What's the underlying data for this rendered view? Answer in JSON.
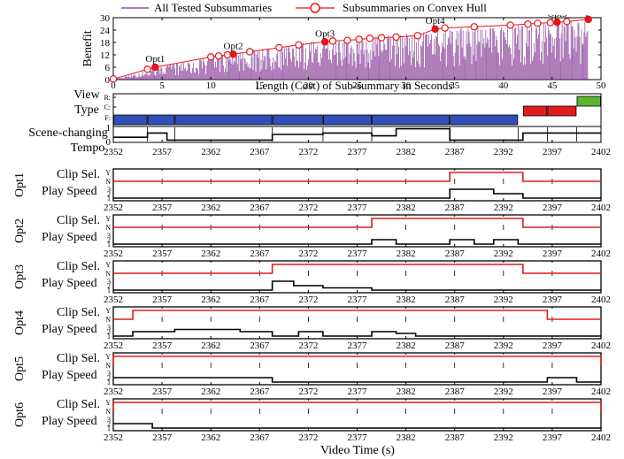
{
  "chart_data": [
    {
      "type": "bar",
      "ylabel": "Benefit",
      "xlabel": "Length (Cost) of Sub-summary in Seconds",
      "xlim": [
        0,
        50
      ],
      "ylim": [
        0,
        30
      ],
      "x_ticks": [
        "0",
        "5",
        "10",
        "15",
        "20",
        "25",
        "30",
        "35",
        "40",
        "45",
        "50"
      ],
      "y_ticks": [
        "0",
        "6",
        "12",
        "18",
        "24",
        "30"
      ],
      "legend": {
        "placement": "top",
        "entries": [
          "All Tested Subsummaries",
          "Subsummaries on Convex Hull"
        ]
      },
      "colors": {
        "all_tested": "#7b2a8e",
        "convex_hull": "#e8141b"
      },
      "convex_hull": {
        "x": [
          0,
          3.5,
          4.3,
          10,
          10.8,
          11.7,
          12.3,
          14,
          17,
          19,
          21.7,
          22.5,
          24,
          25.2,
          26.3,
          27.5,
          29,
          31.2,
          33,
          34,
          37,
          40.7,
          42.5,
          43.5,
          44.8,
          45.5,
          46.5,
          48.7
        ],
        "y": [
          0.3,
          5,
          6,
          11,
          11.5,
          12,
          12.3,
          13.5,
          15.5,
          16.8,
          18.3,
          18.7,
          19,
          19.5,
          20,
          20.3,
          20.6,
          21.3,
          24.5,
          25,
          25.6,
          26.4,
          26.9,
          27.3,
          27.6,
          27.8,
          28.1,
          29.2
        ]
      },
      "labelled_points": [
        {
          "label": "Opt1",
          "x": 4.3,
          "y": 6
        },
        {
          "label": "Opt2",
          "x": 12.3,
          "y": 12.3
        },
        {
          "label": "Opt3",
          "x": 21.7,
          "y": 18.3
        },
        {
          "label": "Opt4",
          "x": 33,
          "y": 24.5
        },
        {
          "label": "Opt5",
          "x": 45.5,
          "y": 27.8
        },
        {
          "label": "Opt6",
          "x": 48.7,
          "y": 29.2
        }
      ],
      "all_tested_envelope": {
        "x": [
          0,
          5,
          10,
          15,
          20,
          25,
          30,
          35,
          40,
          45,
          48.7
        ],
        "y": [
          0.3,
          6.5,
          11,
          15,
          18.4,
          20.6,
          22.5,
          25,
          26.4,
          28,
          29.2
        ]
      }
    },
    {
      "type": "table",
      "rows": [
        "View",
        "Type",
        "Scene-changing",
        "Tempo"
      ],
      "view_levels": [
        "R:",
        "C:",
        "F:"
      ],
      "x_range": [
        2352,
        2402
      ],
      "x_ticks": [
        "2352",
        "2357",
        "2362",
        "2367",
        "2372",
        "2377",
        "2382",
        "2387",
        "2392",
        "2397",
        "2402"
      ],
      "colors": {
        "F": "#3050b8",
        "C": "#e01b1b",
        "R": "#5ab52e"
      },
      "view_segments": [
        {
          "level": "F",
          "start": 2352,
          "end": 2355.5
        },
        {
          "level": "F",
          "start": 2355.5,
          "end": 2358.3
        },
        {
          "level": "F",
          "start": 2358.3,
          "end": 2368.3
        },
        {
          "level": "F",
          "start": 2368.3,
          "end": 2373.5
        },
        {
          "level": "F",
          "start": 2373.5,
          "end": 2378.5
        },
        {
          "level": "F",
          "start": 2378.5,
          "end": 2386.5
        },
        {
          "level": "F",
          "start": 2386.5,
          "end": 2393.5
        },
        {
          "level": "C",
          "start": 2394,
          "end": 2396.5
        },
        {
          "level": "C",
          "start": 2396.5,
          "end": 2399.5
        },
        {
          "level": "R",
          "start": 2399.5,
          "end": 2402
        }
      ],
      "scene_change_times": [
        2355.5,
        2358.3,
        2368.3,
        2373.5,
        2378.5,
        2386.5,
        2393.5,
        2396.5,
        2399.5
      ],
      "tempo": [
        {
          "x": 2352,
          "y": 0.3
        },
        {
          "x": 2355.5,
          "y": 0.6
        },
        {
          "x": 2357.5,
          "y": 0.1
        },
        {
          "x": 2368.3,
          "y": 0.5
        },
        {
          "x": 2373.5,
          "y": 0.6
        },
        {
          "x": 2378.5,
          "y": 0.4
        },
        {
          "x": 2381,
          "y": 0.9
        },
        {
          "x": 2386.5,
          "y": 0.1
        },
        {
          "x": 2394,
          "y": 0.6
        },
        {
          "x": 2402,
          "y": 0.6
        }
      ],
      "tempo_ticks": [
        "0",
        "1"
      ]
    },
    {
      "type": "line",
      "shared_xlabel": "Video Time (s)",
      "x_range": [
        2352,
        2402
      ],
      "x_ticks": [
        "2352",
        "2357",
        "2362",
        "2367",
        "2372",
        "2377",
        "2382",
        "2387",
        "2392",
        "2397",
        "2402"
      ],
      "clip_ticks": [
        "Y",
        "N"
      ],
      "speed_ticks": [
        "3",
        "2",
        "1"
      ],
      "row_labels": [
        "Clip Sel.",
        "Play Speed"
      ],
      "colors": {
        "clip_selection": "#e01b1b",
        "play_speed": "#000000"
      },
      "options": [
        {
          "name": "Opt1",
          "clip_selected": [
            [
              2386.5,
              2394
            ]
          ],
          "play_speed": [
            [
              2352,
              1
            ],
            [
              2386.5,
              3
            ],
            [
              2391,
              2
            ],
            [
              2394,
              1
            ],
            [
              2402,
              1
            ]
          ]
        },
        {
          "name": "Opt2",
          "clip_selected": [
            [
              2378.5,
              2394
            ]
          ],
          "play_speed": [
            [
              2352,
              1
            ],
            [
              2378.5,
              2
            ],
            [
              2381,
              1
            ],
            [
              2386.5,
              2
            ],
            [
              2389,
              1
            ],
            [
              2391,
              2
            ],
            [
              2393.5,
              1
            ],
            [
              2402,
              1
            ]
          ]
        },
        {
          "name": "Opt3",
          "clip_selected": [
            [
              2368.3,
              2394
            ]
          ],
          "play_speed": [
            [
              2352,
              1
            ],
            [
              2368.3,
              3
            ],
            [
              2370.5,
              2
            ],
            [
              2373.5,
              1.5
            ],
            [
              2378.5,
              1
            ],
            [
              2402,
              1
            ]
          ]
        },
        {
          "name": "Opt4",
          "clip_selected": [
            [
              2354,
              2396.5
            ]
          ],
          "play_speed": [
            [
              2352,
              1
            ],
            [
              2354,
              2
            ],
            [
              2358.3,
              2.5
            ],
            [
              2365,
              2
            ],
            [
              2368.3,
              1
            ],
            [
              2371,
              2
            ],
            [
              2373.5,
              1
            ],
            [
              2378.5,
              2
            ],
            [
              2381,
              1.6
            ],
            [
              2383,
              1
            ],
            [
              2396.5,
              1
            ],
            [
              2402,
              1
            ]
          ]
        },
        {
          "name": "Opt5",
          "clip_selected": [
            [
              2352,
              2402
            ]
          ],
          "play_speed": [
            [
              2352,
              2
            ],
            [
              2368.3,
              1
            ],
            [
              2396.5,
              2
            ],
            [
              2399.5,
              1
            ],
            [
              2402,
              1
            ]
          ]
        },
        {
          "name": "Opt6",
          "clip_selected": [
            [
              2352,
              2402
            ]
          ],
          "play_speed": [
            [
              2352,
              2
            ],
            [
              2356,
              1
            ],
            [
              2402,
              1
            ]
          ]
        }
      ]
    }
  ]
}
